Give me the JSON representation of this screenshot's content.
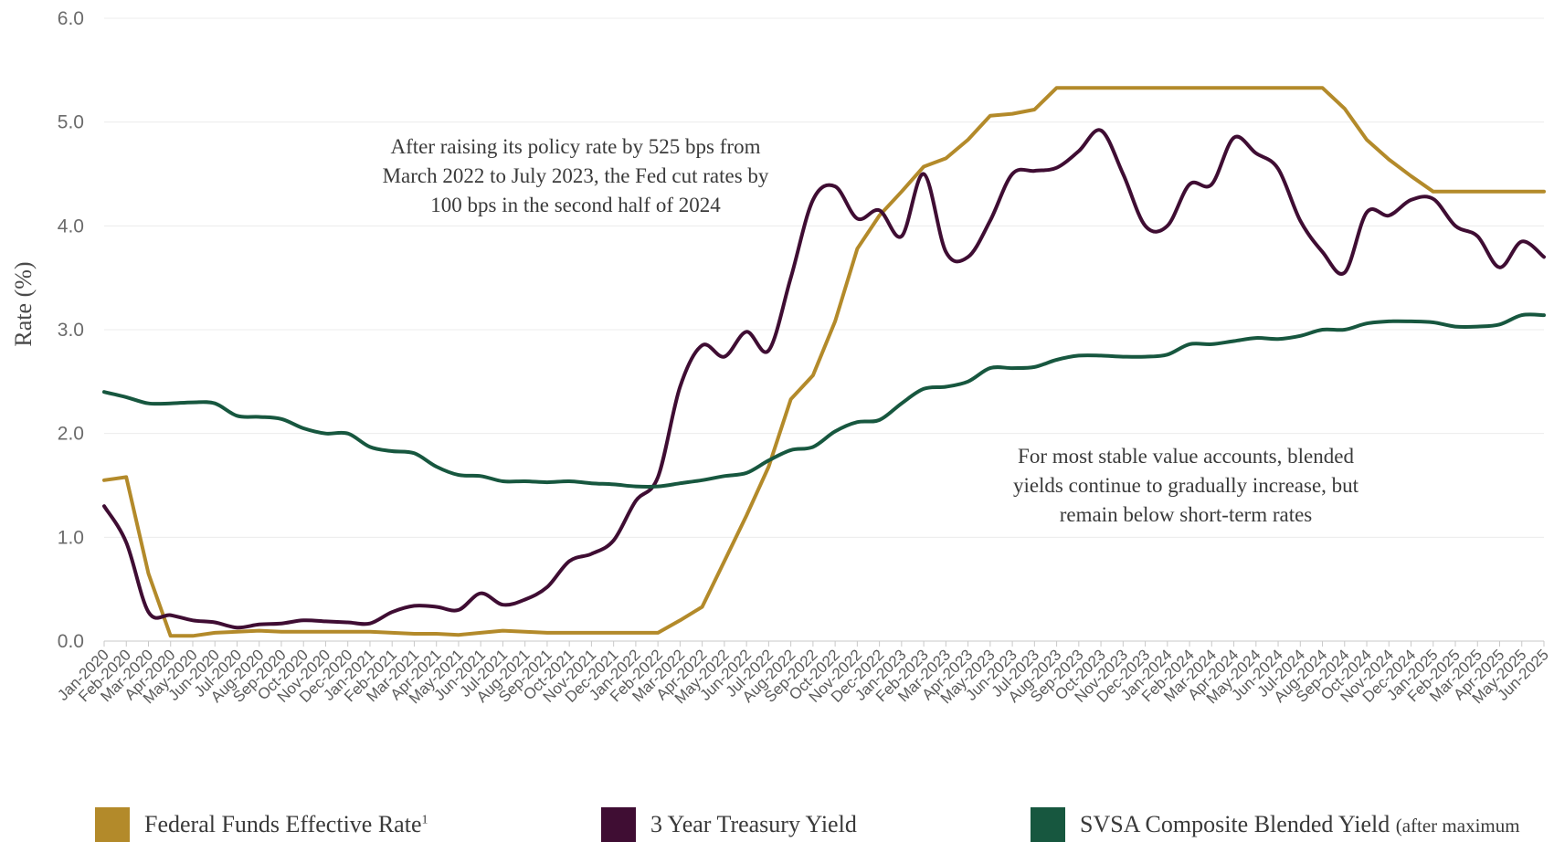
{
  "chart_data": {
    "type": "line",
    "ylabel": "Rate (%)",
    "ylim": [
      0,
      6
    ],
    "yticks": [
      "0.0",
      "1.0",
      "2.0",
      "3.0",
      "4.0",
      "5.0",
      "6.0"
    ],
    "grid": "horizontal",
    "legend_position": "bottom",
    "categories": [
      "Jan-2020",
      "Feb-2020",
      "Mar-2020",
      "Apr-2020",
      "May-2020",
      "Jun-2020",
      "Jul-2020",
      "Aug-2020",
      "Sep-2020",
      "Oct-2020",
      "Nov-2020",
      "Dec-2020",
      "Jan-2021",
      "Feb-2021",
      "Mar-2021",
      "Apr-2021",
      "May-2021",
      "Jun-2021",
      "Jul-2021",
      "Aug-2021",
      "Sep-2021",
      "Oct-2021",
      "Nov-2021",
      "Dec-2021",
      "Jan-2022",
      "Feb-2022",
      "Mar-2022",
      "Apr-2022",
      "May-2022",
      "Jun-2022",
      "Jul-2022",
      "Aug-2022",
      "Sep-2022",
      "Oct-2022",
      "Nov-2022",
      "Dec-2022",
      "Jan-2023",
      "Feb-2023",
      "Mar-2023",
      "Apr-2023",
      "May-2023",
      "Jun-2023",
      "Jul-2023",
      "Aug-2023",
      "Sep-2023",
      "Oct-2023",
      "Nov-2023",
      "Dec-2023",
      "Jan-2024",
      "Feb-2024",
      "Mar-2024",
      "Apr-2024",
      "May-2024",
      "Jun-2024",
      "Jul-2024",
      "Aug-2024",
      "Sep-2024",
      "Oct-2024",
      "Nov-2024",
      "Dec-2024",
      "Jan-2025",
      "Feb-2025",
      "Mar-2025",
      "Apr-2025",
      "May-2025",
      "Jun-2025"
    ],
    "series": [
      {
        "name": "Federal Funds Effective Rate",
        "color": "#b38a2a",
        "values": [
          1.55,
          1.58,
          0.65,
          0.05,
          0.05,
          0.08,
          0.09,
          0.1,
          0.09,
          0.09,
          0.09,
          0.09,
          0.09,
          0.08,
          0.07,
          0.07,
          0.06,
          0.08,
          0.1,
          0.09,
          0.08,
          0.08,
          0.08,
          0.08,
          0.08,
          0.08,
          0.2,
          0.33,
          0.77,
          1.21,
          1.68,
          2.33,
          2.56,
          3.08,
          3.78,
          4.1,
          4.33,
          4.57,
          4.65,
          4.83,
          5.06,
          5.08,
          5.12,
          5.33,
          5.33,
          5.33,
          5.33,
          5.33,
          5.33,
          5.33,
          5.33,
          5.33,
          5.33,
          5.33,
          5.33,
          5.33,
          5.13,
          4.83,
          4.64,
          4.48,
          4.33,
          4.33,
          4.33,
          4.33,
          4.33,
          4.33
        ]
      },
      {
        "name": "3 Year Treasury Yield",
        "color": "#3f0d33",
        "values": [
          1.3,
          0.95,
          0.28,
          0.25,
          0.2,
          0.18,
          0.13,
          0.16,
          0.17,
          0.2,
          0.19,
          0.18,
          0.17,
          0.28,
          0.34,
          0.33,
          0.3,
          0.46,
          0.35,
          0.4,
          0.52,
          0.77,
          0.84,
          0.97,
          1.35,
          1.58,
          2.45,
          2.85,
          2.74,
          2.98,
          2.8,
          3.5,
          4.25,
          4.38,
          4.07,
          4.15,
          3.9,
          4.5,
          3.75,
          3.7,
          4.05,
          4.5,
          4.53,
          4.56,
          4.72,
          4.92,
          4.5,
          4.0,
          4.0,
          4.4,
          4.4,
          4.85,
          4.7,
          4.55,
          4.05,
          3.75,
          3.55,
          4.13,
          4.1,
          4.25,
          4.26,
          4.0,
          3.9,
          3.6,
          3.85,
          3.7
        ]
      },
      {
        "name": "SVSA Composite Blended Yield (after maximum",
        "color": "#17573f",
        "values": [
          2.4,
          2.35,
          2.29,
          2.29,
          2.3,
          2.29,
          2.17,
          2.16,
          2.14,
          2.05,
          2.0,
          2.0,
          1.87,
          1.83,
          1.81,
          1.68,
          1.6,
          1.59,
          1.54,
          1.54,
          1.53,
          1.54,
          1.52,
          1.51,
          1.49,
          1.49,
          1.52,
          1.55,
          1.59,
          1.62,
          1.74,
          1.84,
          1.87,
          2.02,
          2.11,
          2.13,
          2.29,
          2.43,
          2.45,
          2.5,
          2.63,
          2.63,
          2.64,
          2.71,
          2.75,
          2.75,
          2.74,
          2.74,
          2.76,
          2.86,
          2.86,
          2.89,
          2.92,
          2.91,
          2.94,
          3.0,
          3.0,
          3.06,
          3.08,
          3.08,
          3.07,
          3.03,
          3.03,
          3.05,
          3.14,
          3.14
        ]
      }
    ],
    "annotations": [
      [
        "After raising its policy rate by 525 bps from",
        "March 2022 to July 2023, the Fed cut rates by",
        "100 bps in the second half of 2024"
      ],
      [
        "For most stable value accounts, blended",
        "yields continue to gradually increase, but",
        "remain below short-term rates"
      ]
    ]
  },
  "legend": {
    "fed_label": "Federal Funds Effective Rate",
    "fed_sup": "1",
    "treasury_label": "3 Year Treasury Yield",
    "svsa_label": "SVSA Composite Blended Yield",
    "svsa_note": "(after maximum"
  }
}
